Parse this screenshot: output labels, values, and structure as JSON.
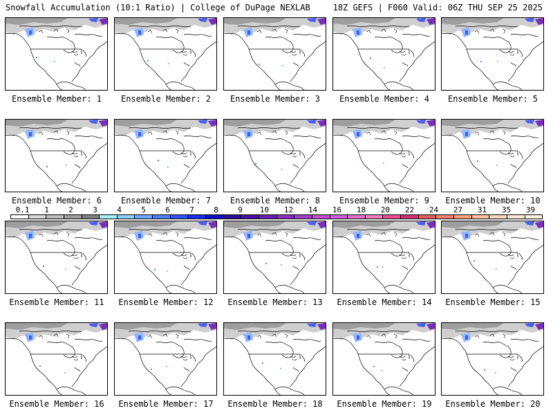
{
  "header": {
    "title_left": "Snowfall Accumulation (10:1 Ratio) | College of DuPage NEXLAB",
    "title_right": "18Z GEFS | F060 Valid: 06Z THU SEP 25 2025"
  },
  "panels": [
    {
      "label": "Ensemble Member: 1"
    },
    {
      "label": "Ensemble Member: 2"
    },
    {
      "label": "Ensemble Member: 3"
    },
    {
      "label": "Ensemble Member: 4"
    },
    {
      "label": "Ensemble Member: 5"
    },
    {
      "label": "Ensemble Member: 6"
    },
    {
      "label": "Ensemble Member: 7"
    },
    {
      "label": "Ensemble Member: 8"
    },
    {
      "label": "Ensemble Member: 9"
    },
    {
      "label": "Ensemble Member: 10"
    },
    {
      "label": "Ensemble Member: 11"
    },
    {
      "label": "Ensemble Member: 12"
    },
    {
      "label": "Ensemble Member: 13"
    },
    {
      "label": "Ensemble Member: 14"
    },
    {
      "label": "Ensemble Member: 15"
    },
    {
      "label": "Ensemble Member: 16"
    },
    {
      "label": "Ensemble Member: 17"
    },
    {
      "label": "Ensemble Member: 18"
    },
    {
      "label": "Ensemble Member: 19"
    },
    {
      "label": "Ensemble Member: 20"
    }
  ],
  "colorbar": {
    "labels": [
      "0.1",
      "1",
      "2",
      "3",
      "4",
      "5",
      "6",
      "7",
      "8",
      "9",
      "10",
      "12",
      "14",
      "16",
      "18",
      "20",
      "22",
      "24",
      "27",
      "31",
      "35",
      "39"
    ],
    "colors": [
      "#ffffff",
      "#d9d9d9",
      "#bdbdbd",
      "#9e9e9e",
      "#7f7f7f",
      "#a7f0f7",
      "#8fd0ff",
      "#6fa8ff",
      "#4f7fff",
      "#2e55ff",
      "#1a2df0",
      "#0f10c8",
      "#2a1090",
      "#4a10a0",
      "#6a20b0",
      "#8a30c0",
      "#a040c8",
      "#c050d0",
      "#d060d8",
      "#e070c8",
      "#f080b8",
      "#e85090",
      "#d03070",
      "#e06060",
      "#f08070",
      "#f8a080",
      "#f8c0a0",
      "#f8d8c0",
      "#fce8d8",
      "#fff2e6"
    ]
  }
}
